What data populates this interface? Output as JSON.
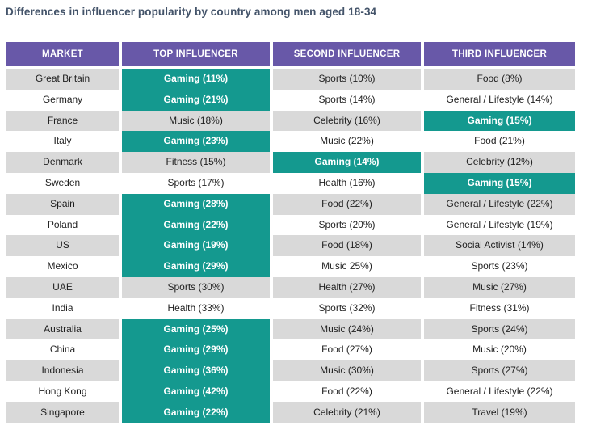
{
  "title": "Differences in influencer popularity by country among men aged 18-34",
  "colors": {
    "title_color": "#44546A",
    "header_bg": "#6858A8",
    "header_text": "#FFFFFF",
    "highlight_bg": "#14998F",
    "row_alt_bg": "#D9D9D9",
    "row_bg": "#FFFFFF",
    "body_text": "#1F1F1F"
  },
  "chart_data": {
    "type": "table",
    "title": "Differences in influencer popularity by country among men aged 18-34",
    "columns": [
      "MARKET",
      "TOP INFLUENCER",
      "SECOND INFLUENCER",
      "THIRD INFLUENCER"
    ],
    "highlight_meaning": "Teal highlighted cells mark Gaming influencer category",
    "rows": [
      {
        "market": "Great Britain",
        "top": "Gaming (11%)",
        "second": "Sports (10%)",
        "third": "Food (8%)",
        "highlight": "top"
      },
      {
        "market": "Germany",
        "top": "Gaming (21%)",
        "second": "Sports (14%)",
        "third": "General / Lifestyle (14%)",
        "highlight": "top"
      },
      {
        "market": "France",
        "top": "Music (18%)",
        "second": "Celebrity (16%)",
        "third": "Gaming (15%)",
        "highlight": "third"
      },
      {
        "market": "Italy",
        "top": "Gaming (23%)",
        "second": "Music (22%)",
        "third": "Food (21%)",
        "highlight": "top"
      },
      {
        "market": "Denmark",
        "top": "Fitness (15%)",
        "second": "Gaming (14%)",
        "third": "Celebrity (12%)",
        "highlight": "second"
      },
      {
        "market": "Sweden",
        "top": "Sports (17%)",
        "second": "Health (16%)",
        "third": "Gaming (15%)",
        "highlight": "third"
      },
      {
        "market": "Spain",
        "top": "Gaming (28%)",
        "second": "Food (22%)",
        "third": "General / Lifestyle (22%)",
        "highlight": "top"
      },
      {
        "market": "Poland",
        "top": "Gaming (22%)",
        "second": "Sports (20%)",
        "third": "General / Lifestyle (19%)",
        "highlight": "top"
      },
      {
        "market": "US",
        "top": "Gaming (19%)",
        "second": "Food (18%)",
        "third": "Social Activist (14%)",
        "highlight": "top"
      },
      {
        "market": "Mexico",
        "top": "Gaming (29%)",
        "second": "Music 25%)",
        "third": "Sports (23%)",
        "highlight": "top"
      },
      {
        "market": "UAE",
        "top": "Sports (30%)",
        "second": "Health (27%)",
        "third": "Music (27%)",
        "highlight": null
      },
      {
        "market": "India",
        "top": "Health (33%)",
        "second": "Sports (32%)",
        "third": "Fitness (31%)",
        "highlight": null
      },
      {
        "market": "Australia",
        "top": "Gaming (25%)",
        "second": "Music (24%)",
        "third": "Sports (24%)",
        "highlight": "top"
      },
      {
        "market": "China",
        "top": "Gaming (29%)",
        "second": "Food (27%)",
        "third": "Music (20%)",
        "highlight": "top"
      },
      {
        "market": "Indonesia",
        "top": "Gaming (36%)",
        "second": "Music (30%)",
        "third": "Sports (27%)",
        "highlight": "top"
      },
      {
        "market": "Hong Kong",
        "top": "Gaming (42%)",
        "second": "Food (22%)",
        "third": "General / Lifestyle (22%)",
        "highlight": "top"
      },
      {
        "market": "Singapore",
        "top": "Gaming (22%)",
        "second": "Celebrity (21%)",
        "third": "Travel (19%)",
        "highlight": "top"
      }
    ]
  }
}
